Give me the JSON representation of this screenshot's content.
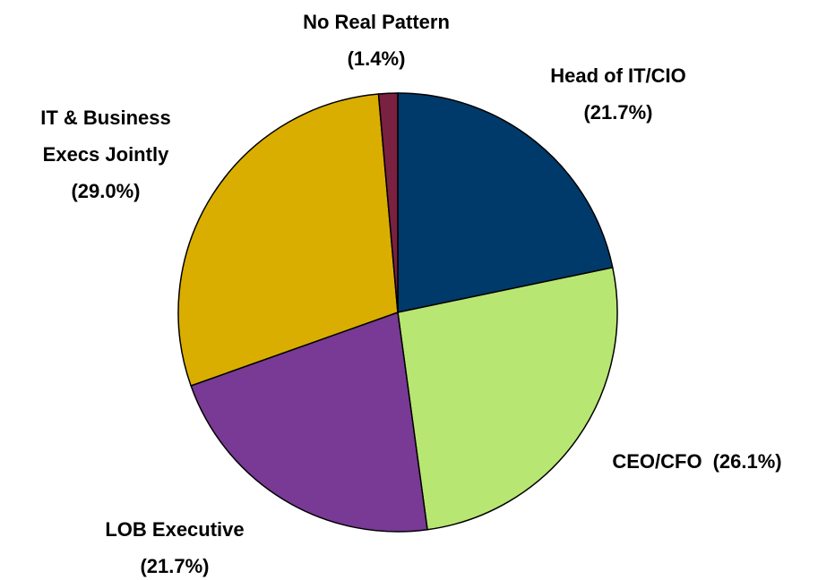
{
  "chart_data": {
    "type": "pie",
    "categories": [
      "Head of IT/CIO",
      "CEO/CFO",
      "LOB Executive",
      "IT & Business Execs Jointly",
      "No Real Pattern"
    ],
    "values": [
      21.7,
      26.1,
      21.7,
      29.0,
      1.4
    ],
    "value_labels": [
      "(21.7%)",
      "(26.1%)",
      "(21.7%)",
      "(29.0%)",
      "(1.4%)"
    ],
    "colors": [
      "#003a6b",
      "#b8e673",
      "#783a94",
      "#d9ae00",
      "#7a2040"
    ]
  }
}
